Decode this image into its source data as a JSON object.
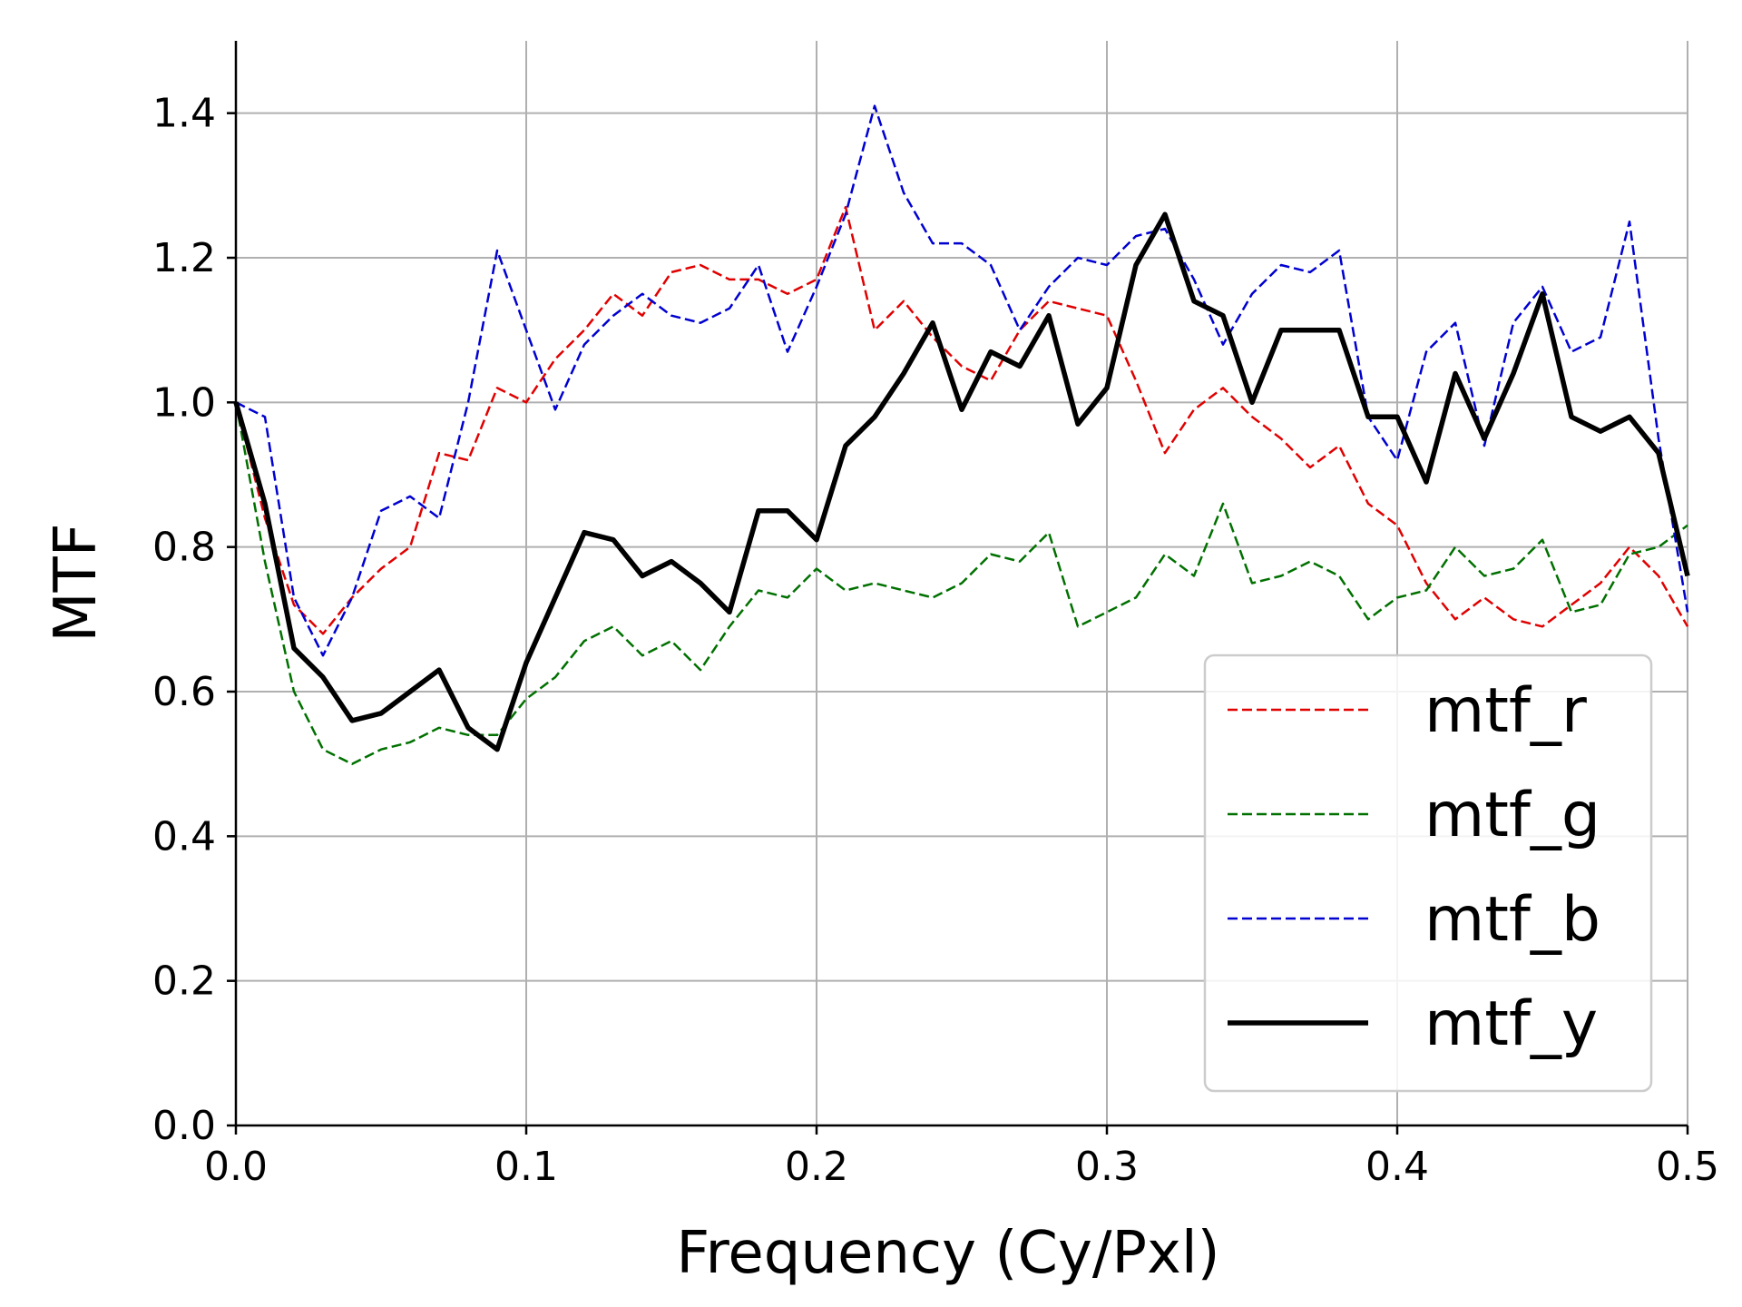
{
  "chart_data": {
    "type": "line",
    "xlabel": "Frequency (Cy/Pxl)",
    "ylabel": "MTF",
    "xlim": [
      0,
      0.5
    ],
    "ylim": [
      0,
      1.5
    ],
    "xticks": [
      "0.0",
      "0.1",
      "0.2",
      "0.3",
      "0.4",
      "0.5"
    ],
    "yticks": [
      "0.0",
      "0.2",
      "0.4",
      "0.6",
      "0.8",
      "1.0",
      "1.2",
      "1.4"
    ],
    "grid": true,
    "legend_position": "bottom-right",
    "x": [
      0.0,
      0.01,
      0.02,
      0.03,
      0.04,
      0.05,
      0.06,
      0.07,
      0.08,
      0.09,
      0.1,
      0.11,
      0.12,
      0.13,
      0.14,
      0.15,
      0.16,
      0.17,
      0.18,
      0.19,
      0.2,
      0.21,
      0.22,
      0.23,
      0.24,
      0.25,
      0.26,
      0.27,
      0.28,
      0.29,
      0.3,
      0.31,
      0.32,
      0.33,
      0.34,
      0.35,
      0.36,
      0.37,
      0.38,
      0.39,
      0.4,
      0.41,
      0.42,
      0.43,
      0.44,
      0.45,
      0.46,
      0.47,
      0.48,
      0.49,
      0.5
    ],
    "series": [
      {
        "name": "mtf_r",
        "color": "#e00000",
        "style": "dashed",
        "values": [
          1.0,
          0.84,
          0.72,
          0.68,
          0.73,
          0.77,
          0.8,
          0.93,
          0.92,
          1.02,
          1.0,
          1.06,
          1.1,
          1.15,
          1.12,
          1.18,
          1.19,
          1.17,
          1.17,
          1.15,
          1.17,
          1.27,
          1.1,
          1.14,
          1.09,
          1.05,
          1.03,
          1.1,
          1.14,
          1.13,
          1.12,
          1.03,
          0.93,
          0.99,
          1.02,
          0.98,
          0.95,
          0.91,
          0.94,
          0.86,
          0.83,
          0.75,
          0.7,
          0.73,
          0.7,
          0.69,
          0.72,
          0.75,
          0.8,
          0.76,
          0.69
        ]
      },
      {
        "name": "mtf_g",
        "color": "#007000",
        "style": "dashed",
        "values": [
          1.0,
          0.78,
          0.6,
          0.52,
          0.5,
          0.52,
          0.53,
          0.55,
          0.54,
          0.54,
          0.59,
          0.62,
          0.67,
          0.69,
          0.65,
          0.67,
          0.63,
          0.69,
          0.74,
          0.73,
          0.77,
          0.74,
          0.75,
          0.74,
          0.73,
          0.75,
          0.79,
          0.78,
          0.82,
          0.69,
          0.71,
          0.73,
          0.79,
          0.76,
          0.86,
          0.75,
          0.76,
          0.78,
          0.76,
          0.7,
          0.73,
          0.74,
          0.8,
          0.76,
          0.77,
          0.81,
          0.71,
          0.72,
          0.79,
          0.8,
          0.83
        ]
      },
      {
        "name": "mtf_b",
        "color": "#0000d0",
        "style": "dashed",
        "values": [
          1.0,
          0.98,
          0.73,
          0.65,
          0.73,
          0.85,
          0.87,
          0.84,
          1.0,
          1.21,
          1.1,
          0.99,
          1.08,
          1.12,
          1.15,
          1.12,
          1.11,
          1.13,
          1.19,
          1.07,
          1.16,
          1.26,
          1.41,
          1.29,
          1.22,
          1.22,
          1.19,
          1.1,
          1.16,
          1.2,
          1.19,
          1.23,
          1.24,
          1.17,
          1.08,
          1.15,
          1.19,
          1.18,
          1.21,
          0.98,
          0.92,
          1.07,
          1.11,
          0.94,
          1.11,
          1.16,
          1.07,
          1.09,
          1.25,
          0.95,
          0.71
        ]
      },
      {
        "name": "mtf_y",
        "color": "#000000",
        "style": "solid",
        "values": [
          1.0,
          0.86,
          0.66,
          0.62,
          0.56,
          0.57,
          0.6,
          0.63,
          0.55,
          0.52,
          0.64,
          0.73,
          0.82,
          0.81,
          0.76,
          0.78,
          0.75,
          0.71,
          0.85,
          0.85,
          0.81,
          0.94,
          0.98,
          1.04,
          1.11,
          0.99,
          1.07,
          1.05,
          1.12,
          0.97,
          1.02,
          1.19,
          1.26,
          1.14,
          1.12,
          1.0,
          1.1,
          1.1,
          1.1,
          0.98,
          0.98,
          0.89,
          1.04,
          0.95,
          1.04,
          1.15,
          0.98,
          0.96,
          0.98,
          0.93,
          0.76
        ]
      }
    ]
  }
}
